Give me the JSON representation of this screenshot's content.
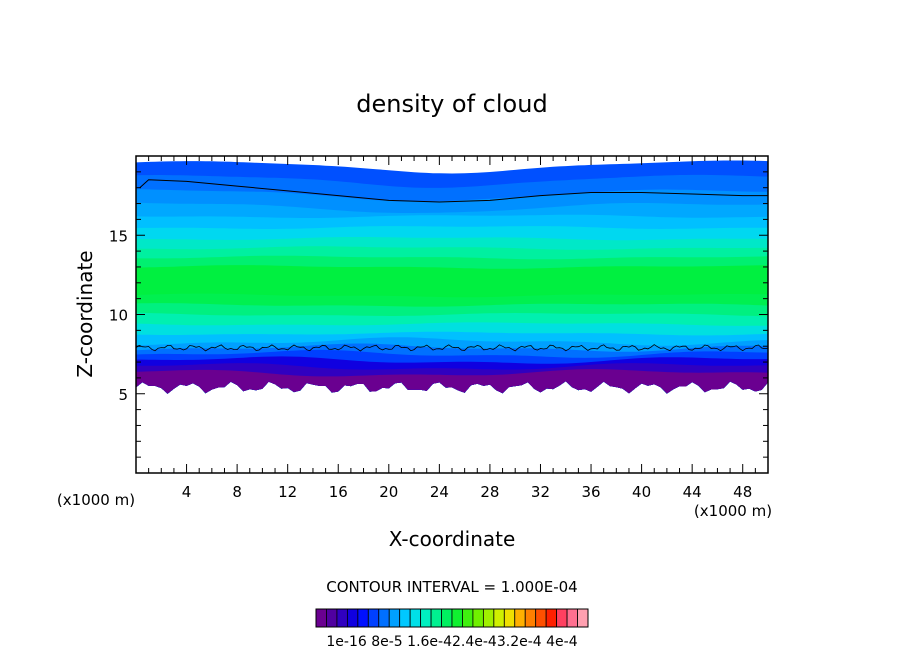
{
  "chart_data": {
    "type": "heatmap",
    "title": "density of cloud",
    "xlabel": "X-coordinate",
    "ylabel": "Z-coordinate",
    "x_unit_left": "(x1000 m)",
    "x_unit_right": "(x1000 m)",
    "xlim": [
      0,
      50
    ],
    "ylim": [
      0,
      20
    ],
    "x_ticks": [
      4,
      8,
      12,
      16,
      20,
      24,
      28,
      32,
      36,
      40,
      44,
      48
    ],
    "y_ticks": [
      5,
      10,
      15
    ],
    "contour_interval_label": "CONTOUR INTERVAL = 1.000E-04",
    "colorbar_labels": [
      "1e-16",
      "8e-5",
      "1.6e-4",
      "2.4e-4",
      "3.2e-4",
      "4e-4"
    ],
    "colorbar_label_text": "1e-16 8e-5 1.6e-42.4e-43.2e-4 4e-4",
    "colorbar_colors": [
      "#6a0090",
      "#5000a0",
      "#3000c0",
      "#1000e0",
      "#0010ff",
      "#0040ff",
      "#0070ff",
      "#00a0ff",
      "#00c8ff",
      "#00e0e8",
      "#00f0c0",
      "#00f090",
      "#00f060",
      "#10f030",
      "#40f010",
      "#70f000",
      "#a0f000",
      "#d0f000",
      "#f0e000",
      "#ffb000",
      "#ff8000",
      "#ff5000",
      "#ff2000",
      "#ff4060",
      "#ff7090",
      "#ffa0b0"
    ],
    "layers": [
      {
        "z_top": 19.6,
        "color": "#0050ff"
      },
      {
        "z_top": 18.7,
        "color": "#0070ff"
      },
      {
        "z_top": 17.8,
        "color": "#0090ff"
      },
      {
        "z_top": 17.0,
        "color": "#00a8ff"
      },
      {
        "z_top": 16.2,
        "color": "#00c0ff"
      },
      {
        "z_top": 15.5,
        "color": "#00d8f0"
      },
      {
        "z_top": 14.8,
        "color": "#00e8c8"
      },
      {
        "z_top": 14.2,
        "color": "#00f0a0"
      },
      {
        "z_top": 13.6,
        "color": "#00f070"
      },
      {
        "z_top": 13.0,
        "color": "#00f040"
      },
      {
        "z_top": 11.2,
        "color": "#00f050"
      },
      {
        "z_top": 10.6,
        "color": "#00f080"
      },
      {
        "z_top": 10.0,
        "color": "#00f0b0"
      },
      {
        "z_top": 9.4,
        "color": "#00e0e0"
      },
      {
        "z_top": 8.8,
        "color": "#00c0ff"
      },
      {
        "z_top": 8.3,
        "color": "#00a0ff"
      },
      {
        "z_top": 7.9,
        "color": "#0070ff"
      },
      {
        "z_top": 7.5,
        "color": "#0040ff"
      },
      {
        "z_top": 7.1,
        "color": "#1000e0"
      },
      {
        "z_top": 6.7,
        "color": "#3000c0"
      },
      {
        "z_top": 6.3,
        "color": "#6a0090"
      }
    ],
    "cloud_base_z": 5.4,
    "upper_contour": {
      "x": [
        0.3,
        1,
        4,
        8,
        12,
        16,
        20,
        24,
        28,
        32,
        36,
        40,
        44,
        48,
        50
      ],
      "z": [
        18.0,
        18.5,
        18.4,
        18.1,
        17.8,
        17.5,
        17.2,
        17.1,
        17.2,
        17.5,
        17.7,
        17.7,
        17.6,
        17.5,
        17.5
      ]
    },
    "lower_contour_z": 7.9,
    "colors": {
      "frame": "#000000",
      "contour": "#000000"
    }
  }
}
